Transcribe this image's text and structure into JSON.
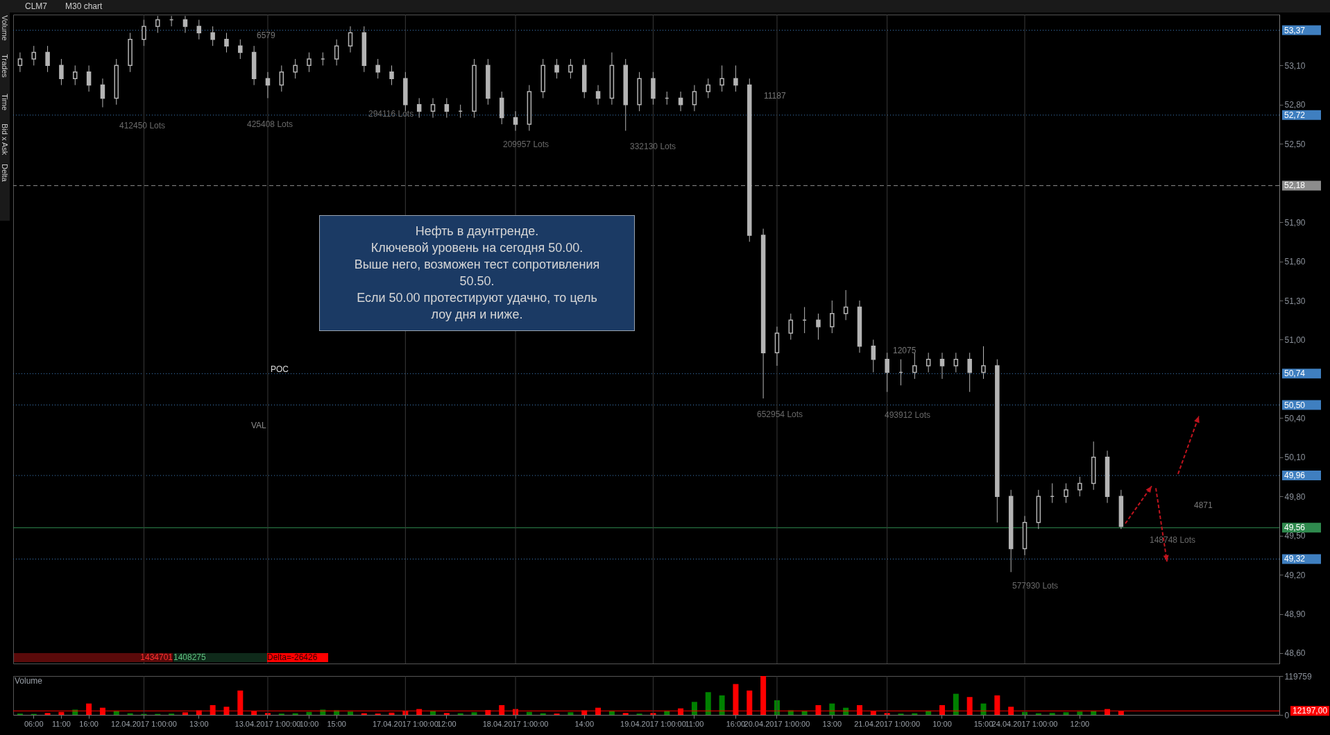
{
  "chart_data": [
    {
      "type": "candlestick",
      "color": "#b4b4b4",
      "tick_labels": "y",
      "categories": [
        null,
        "06:00",
        null,
        "11:00",
        null,
        "16:00",
        null,
        null,
        null,
        "12.04.2017 1:00:00",
        null,
        null,
        null,
        "13:00",
        null,
        null,
        null,
        null,
        "13.04.2017 1:00:00",
        null,
        null,
        "10:00",
        null,
        "15:00",
        null,
        null,
        null,
        null,
        "17.04.2017 1:00:00",
        null,
        null,
        "12:00",
        null,
        null,
        null,
        null,
        "18.04.2017 1:00:00",
        null,
        null,
        null,
        null,
        "14:00",
        null,
        null,
        null,
        null,
        "19.04.2017 1:00:00",
        null,
        null,
        "11:00",
        null,
        null,
        "16:00",
        null,
        null,
        "20.04.2017 1:00:00",
        null,
        null,
        null,
        "13:00",
        null,
        null,
        null,
        "21.04.2017 1:00:00",
        null,
        null,
        null,
        "10:00",
        null,
        null,
        "15:00",
        null,
        null,
        "24.04.2017 1:00:00",
        null,
        null,
        null,
        "12:00",
        null,
        null,
        null,
        null,
        null,
        null,
        null,
        null,
        null,
        null,
        null,
        null,
        null,
        null
      ],
      "ohlc": [
        [
          53.1,
          53.2,
          53.05,
          53.15
        ],
        [
          53.15,
          53.25,
          53.1,
          53.2
        ],
        [
          53.2,
          53.25,
          53.05,
          53.1
        ],
        [
          53.1,
          53.15,
          52.95,
          53.0
        ],
        [
          53.0,
          53.1,
          52.95,
          53.05
        ],
        [
          53.05,
          53.1,
          52.9,
          52.95
        ],
        [
          52.95,
          53.0,
          52.78,
          52.85
        ],
        [
          52.85,
          53.15,
          52.8,
          53.1
        ],
        [
          53.1,
          53.35,
          53.05,
          53.3
        ],
        [
          53.3,
          53.45,
          53.25,
          53.4
        ],
        [
          53.4,
          53.48,
          53.35,
          53.45
        ],
        [
          53.45,
          53.48,
          53.4,
          53.45
        ],
        [
          53.45,
          53.48,
          53.35,
          53.4
        ],
        [
          53.4,
          53.45,
          53.3,
          53.35
        ],
        [
          53.35,
          53.4,
          53.25,
          53.3
        ],
        [
          53.3,
          53.35,
          53.2,
          53.25
        ],
        [
          53.25,
          53.3,
          53.15,
          53.2
        ],
        [
          53.2,
          53.25,
          52.95,
          53.0
        ],
        [
          53.0,
          53.05,
          52.85,
          52.95
        ],
        [
          52.95,
          53.1,
          52.9,
          53.05
        ],
        [
          53.05,
          53.15,
          53.0,
          53.1
        ],
        [
          53.1,
          53.2,
          53.05,
          53.15
        ],
        [
          53.15,
          53.2,
          53.1,
          53.15
        ],
        [
          53.15,
          53.3,
          53.1,
          53.25
        ],
        [
          53.25,
          53.4,
          53.2,
          53.35
        ],
        [
          53.35,
          53.4,
          53.05,
          53.1
        ],
        [
          53.1,
          53.15,
          53.0,
          53.05
        ],
        [
          53.05,
          53.1,
          52.95,
          53.0
        ],
        [
          53.0,
          53.05,
          52.75,
          52.8
        ],
        [
          52.8,
          52.85,
          52.7,
          52.75
        ],
        [
          52.75,
          52.85,
          52.7,
          52.8
        ],
        [
          52.8,
          52.85,
          52.7,
          52.75
        ],
        [
          52.75,
          52.8,
          52.7,
          52.75
        ],
        [
          52.75,
          53.15,
          52.7,
          53.1
        ],
        [
          53.1,
          53.15,
          52.8,
          52.85
        ],
        [
          52.85,
          52.9,
          52.65,
          52.7
        ],
        [
          52.7,
          52.75,
          52.6,
          52.65
        ],
        [
          52.65,
          52.95,
          52.6,
          52.9
        ],
        [
          52.9,
          53.15,
          52.85,
          53.1
        ],
        [
          53.1,
          53.15,
          53.0,
          53.05
        ],
        [
          53.05,
          53.15,
          53.0,
          53.1
        ],
        [
          53.1,
          53.15,
          52.85,
          52.9
        ],
        [
          52.9,
          52.95,
          52.8,
          52.85
        ],
        [
          52.85,
          53.2,
          52.8,
          53.1
        ],
        [
          53.1,
          53.15,
          52.6,
          52.8
        ],
        [
          52.8,
          53.05,
          52.75,
          53.0
        ],
        [
          53.0,
          53.05,
          52.8,
          52.85
        ],
        [
          52.85,
          52.9,
          52.8,
          52.85
        ],
        [
          52.85,
          52.9,
          52.75,
          52.8
        ],
        [
          52.8,
          52.95,
          52.75,
          52.9
        ],
        [
          52.9,
          53.0,
          52.85,
          52.95
        ],
        [
          52.95,
          53.1,
          52.9,
          53.0
        ],
        [
          53.0,
          53.1,
          52.9,
          52.95
        ],
        [
          52.95,
          53.0,
          51.75,
          51.8
        ],
        [
          51.8,
          51.85,
          50.55,
          50.9
        ],
        [
          50.9,
          51.1,
          50.8,
          51.05
        ],
        [
          51.05,
          51.2,
          51.0,
          51.15
        ],
        [
          51.15,
          51.25,
          51.05,
          51.15
        ],
        [
          51.15,
          51.2,
          51.0,
          51.1
        ],
        [
          51.1,
          51.3,
          51.05,
          51.2
        ],
        [
          51.2,
          51.38,
          51.15,
          51.25
        ],
        [
          51.25,
          51.3,
          50.9,
          50.95
        ],
        [
          50.95,
          51.0,
          50.75,
          50.85
        ],
        [
          50.85,
          50.9,
          50.6,
          50.75
        ],
        [
          50.75,
          50.85,
          50.65,
          50.75
        ],
        [
          50.75,
          50.9,
          50.7,
          50.8
        ],
        [
          50.8,
          50.9,
          50.75,
          50.85
        ],
        [
          50.85,
          50.9,
          50.7,
          50.8
        ],
        [
          50.8,
          50.9,
          50.75,
          50.85
        ],
        [
          50.85,
          50.9,
          50.6,
          50.75
        ],
        [
          50.75,
          50.95,
          50.7,
          50.8
        ],
        [
          50.8,
          50.85,
          49.6,
          49.8
        ],
        [
          49.8,
          49.85,
          49.22,
          49.4
        ],
        [
          49.4,
          49.65,
          49.35,
          49.6
        ],
        [
          49.6,
          49.85,
          49.55,
          49.8
        ],
        [
          49.8,
          49.9,
          49.75,
          49.8
        ],
        [
          49.8,
          49.9,
          49.75,
          49.85
        ],
        [
          49.85,
          49.95,
          49.8,
          49.9
        ],
        [
          49.9,
          50.22,
          49.85,
          50.1
        ],
        [
          50.1,
          50.15,
          49.75,
          49.8
        ],
        [
          49.8,
          49.85,
          49.55,
          49.57
        ],
        null,
        null,
        null,
        null,
        null,
        null,
        null,
        null,
        null,
        null,
        null
      ],
      "ylim": [
        48.52,
        53.49
      ],
      "yticks": [
        {
          "value": 48.6,
          "label": "48,60"
        },
        {
          "value": 48.9,
          "label": "48,90"
        },
        {
          "value": 49.2,
          "label": "49,20"
        },
        {
          "value": 49.5,
          "label": "49,50"
        },
        {
          "value": 49.8,
          "label": "49,80"
        },
        {
          "value": 50.1,
          "label": "50,10"
        },
        {
          "value": 50.4,
          "label": "50,40"
        },
        {
          "value": 51.0,
          "label": "51,00"
        },
        {
          "value": 51.3,
          "label": "51,30"
        },
        {
          "value": 51.6,
          "label": "51,60"
        },
        {
          "value": 51.9,
          "label": "51,90"
        },
        {
          "value": 52.5,
          "label": "52,50"
        },
        {
          "value": 52.8,
          "label": "52,80"
        },
        {
          "value": 53.1,
          "label": "53,10"
        }
      ],
      "ref_lines": [
        {
          "axis": "y",
          "value": 53.37,
          "label": "53,37",
          "color": "#3f7fc0",
          "line_style": "dotted"
        },
        {
          "axis": "y",
          "value": 52.72,
          "label": "52,72",
          "color": "#3f7fc0",
          "line_style": "dotted"
        },
        {
          "axis": "y",
          "value": 52.18,
          "label": "52,18",
          "color": "#8c8c8c",
          "line_style": "dashed"
        },
        {
          "axis": "y",
          "value": 50.74,
          "label": "50,74",
          "color": "#3f7fc0",
          "line_style": "dotted"
        },
        {
          "axis": "y",
          "value": 50.5,
          "label": "50,50",
          "color": "#3f7fc0",
          "line_style": "dotted"
        },
        {
          "axis": "y",
          "value": 49.96,
          "label": "49,96",
          "color": "#3f7fc0",
          "line_style": "dotted"
        },
        {
          "axis": "y",
          "value": 49.56,
          "label": "49,56",
          "color": "#2f8a4e",
          "line_style": "solid"
        },
        {
          "axis": "y",
          "value": 49.32,
          "label": "49,32",
          "color": "#3f7fc0",
          "line_style": "dotted"
        },
        {
          "axis": "x",
          "value": "12.04.2017 1:00:00",
          "color": "#3a3a3a"
        },
        {
          "axis": "x",
          "value": "13.04.2017 1:00:00",
          "color": "#3a3a3a"
        },
        {
          "axis": "x",
          "value": "17.04.2017 1:00:00",
          "color": "#3a3a3a"
        },
        {
          "axis": "x",
          "value": "18.04.2017 1:00:00",
          "color": "#3a3a3a"
        },
        {
          "axis": "x",
          "value": "19.04.2017 1:00:00",
          "color": "#3a3a3a"
        },
        {
          "axis": "x",
          "value": "20.04.2017 1:00:00",
          "color": "#3a3a3a"
        },
        {
          "axis": "x",
          "value": "21.04.2017 1:00:00",
          "color": "#3a3a3a"
        },
        {
          "axis": "x",
          "value": "24.04.2017 1:00:00",
          "color": "#3a3a3a"
        }
      ],
      "annotations": [
        "Нефть в даунтренде.\nКлючевой уровень на сегодня 50.00.\nВыше него, возможен тест сопротивления\n50.50.\nЕсли 50.00 протестируют удачно, то цель\nлоу дня и ниже.",
        "POC",
        "VAL",
        "412450 Lots",
        "425408 Lots",
        "294116 Lots",
        "209957 Lots",
        "332130 Lots",
        "652954 Lots",
        "493912 Lots",
        "577930 Lots",
        "148748 Lots",
        "11187",
        "12075",
        "4871",
        "6579",
        "1434701",
        "1408275",
        "Delta=-26426",
        "CLM7",
        "M30 chart",
        "Volume",
        "Trades",
        "Time",
        "Bid x Ask",
        "Delta"
      ]
    },
    {
      "type": "bar",
      "title": "Volume",
      "categories": [
        null,
        "06:00",
        null,
        "11:00",
        null,
        "16:00",
        null,
        null,
        null,
        "12.04.2017 1:00:00",
        null,
        null,
        null,
        "13:00",
        null,
        null,
        null,
        null,
        "13.04.2017 1:00:00",
        null,
        null,
        "10:00",
        null,
        "15:00",
        null,
        null,
        null,
        null,
        "17.04.2017 1:00:00",
        null,
        null,
        "12:00",
        null,
        null,
        null,
        null,
        "18.04.2017 1:00:00",
        null,
        null,
        null,
        null,
        "14:00",
        null,
        null,
        null,
        null,
        "19.04.2017 1:00:00",
        null,
        null,
        "11:00",
        null,
        null,
        "16:00",
        null,
        null,
        "20.04.2017 1:00:00",
        null,
        null,
        null,
        "13:00",
        null,
        null,
        null,
        "21.04.2017 1:00:00",
        null,
        null,
        null,
        "10:00",
        null,
        null,
        "15:00",
        null,
        null,
        "24.04.2017 1:00:00",
        null,
        null,
        null,
        "12:00",
        null,
        null,
        null,
        null,
        null,
        null,
        null,
        null,
        null,
        null,
        null,
        null,
        null,
        null
      ],
      "values": [
        4000,
        3000,
        6000,
        9000,
        16000,
        35000,
        22000,
        12000,
        5000,
        3000,
        3000,
        4000,
        8000,
        14000,
        30000,
        25000,
        75000,
        12000,
        6000,
        4000,
        5000,
        9000,
        16000,
        14000,
        10000,
        5000,
        4000,
        7000,
        13000,
        18000,
        12000,
        6000,
        5000,
        8000,
        15000,
        30000,
        18000,
        9000,
        5000,
        4000,
        8000,
        14000,
        22000,
        12000,
        6000,
        4000,
        6000,
        12000,
        20000,
        40000,
        70000,
        60000,
        95000,
        75000,
        119759,
        45000,
        14000,
        12000,
        30000,
        35000,
        22000,
        30000,
        12000,
        6000,
        4000,
        5000,
        12000,
        30000,
        65000,
        55000,
        35000,
        60000,
        25000,
        9000,
        5000,
        6000,
        8000,
        10000,
        12000,
        18000,
        12197,
        null,
        null,
        null,
        null,
        null,
        null,
        null,
        null,
        null,
        null,
        null
      ],
      "colors": [
        "#008000",
        "#008000",
        "#ff0000",
        "#ff0000",
        "#008000",
        "#ff0000",
        "#ff0000",
        "#008000",
        "#008000",
        "#008000",
        "#008000",
        "#008000",
        "#ff0000",
        "#ff0000",
        "#ff0000",
        "#ff0000",
        "#ff0000",
        "#ff0000",
        "#ff0000",
        "#008000",
        "#008000",
        "#008000",
        "#008000",
        "#008000",
        "#008000",
        "#ff0000",
        "#ff0000",
        "#ff0000",
        "#ff0000",
        "#ff0000",
        "#008000",
        "#ff0000",
        "#008000",
        "#008000",
        "#ff0000",
        "#ff0000",
        "#ff0000",
        "#008000",
        "#008000",
        "#ff0000",
        "#008000",
        "#ff0000",
        "#ff0000",
        "#008000",
        "#ff0000",
        "#008000",
        "#ff0000",
        "#008000",
        "#ff0000",
        "#008000",
        "#008000",
        "#008000",
        "#ff0000",
        "#ff0000",
        "#ff0000",
        "#008000",
        "#008000",
        "#008000",
        "#ff0000",
        "#008000",
        "#008000",
        "#ff0000",
        "#ff0000",
        "#ff0000",
        "#008000",
        "#008000",
        "#008000",
        "#ff0000",
        "#008000",
        "#ff0000",
        "#008000",
        "#ff0000",
        "#ff0000",
        "#008000",
        "#008000",
        "#008000",
        "#008000",
        "#008000",
        "#008000",
        "#ff0000",
        "#ff0000",
        null,
        null,
        null,
        null,
        null,
        null,
        null,
        null,
        null,
        null,
        null
      ],
      "ylim": [
        0,
        119759
      ],
      "yticks": [
        0,
        119759
      ],
      "ref_lines": [
        {
          "axis": "y",
          "value": 12197,
          "label": "12197,00",
          "color": "#ff0000",
          "line_style": "solid"
        },
        {
          "axis": "x",
          "value": "12.04.2017 1:00:00",
          "color": "#3a3a3a"
        },
        {
          "axis": "x",
          "value": "13.04.2017 1:00:00",
          "color": "#3a3a3a"
        },
        {
          "axis": "x",
          "value": "17.04.2017 1:00:00",
          "color": "#3a3a3a"
        },
        {
          "axis": "x",
          "value": "18.04.2017 1:00:00",
          "color": "#3a3a3a"
        },
        {
          "axis": "x",
          "value": "19.04.2017 1:00:00",
          "color": "#3a3a3a"
        },
        {
          "axis": "x",
          "value": "20.04.2017 1:00:00",
          "color": "#3a3a3a"
        },
        {
          "axis": "x",
          "value": "21.04.2017 1:00:00",
          "color": "#3a3a3a"
        },
        {
          "axis": "x",
          "value": "24.04.2017 1:00:00",
          "color": "#3a3a3a"
        }
      ]
    }
  ]
}
